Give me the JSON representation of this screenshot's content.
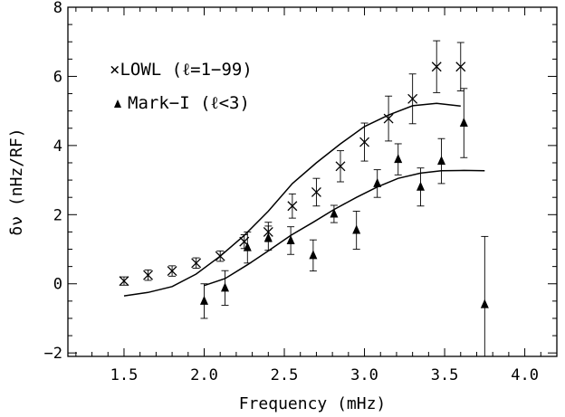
{
  "chart_data": {
    "type": "scatter",
    "title": "",
    "xlabel": "Frequency (mHz)",
    "ylabel": "δν (nHz/RF)",
    "xlim": [
      1.15,
      4.2
    ],
    "ylim": [
      -2.1,
      8
    ],
    "x_ticks": [
      1.5,
      2.0,
      2.5,
      3.0,
      3.5,
      4.0
    ],
    "x_tick_labels": [
      "1.5",
      "2.0",
      "2.5",
      "3.0",
      "3.5",
      "4.0"
    ],
    "y_ticks": [
      -2,
      0,
      2,
      4,
      6,
      8
    ],
    "y_tick_labels": [
      "−2",
      "0",
      "2",
      "4",
      "6",
      "8"
    ],
    "grid": false,
    "legend_position": "top-left",
    "series": [
      {
        "name": "×LOWL (ℓ=1−99)",
        "marker": "x",
        "points": [
          {
            "x": 1.5,
            "y": 0.08,
            "err": 0.12
          },
          {
            "x": 1.65,
            "y": 0.25,
            "err": 0.15
          },
          {
            "x": 1.8,
            "y": 0.37,
            "err": 0.15
          },
          {
            "x": 1.95,
            "y": 0.6,
            "err": 0.15
          },
          {
            "x": 2.1,
            "y": 0.8,
            "err": 0.15
          },
          {
            "x": 2.25,
            "y": 1.22,
            "err": 0.2
          },
          {
            "x": 2.4,
            "y": 1.5,
            "err": 0.28
          },
          {
            "x": 2.55,
            "y": 2.25,
            "err": 0.35
          },
          {
            "x": 2.7,
            "y": 2.65,
            "err": 0.4
          },
          {
            "x": 2.85,
            "y": 3.4,
            "err": 0.45
          },
          {
            "x": 3.0,
            "y": 4.1,
            "err": 0.55
          },
          {
            "x": 3.15,
            "y": 4.78,
            "err": 0.65
          },
          {
            "x": 3.3,
            "y": 5.35,
            "err": 0.72
          },
          {
            "x": 3.45,
            "y": 6.28,
            "err": 0.75
          },
          {
            "x": 3.6,
            "y": 6.28,
            "err": 0.7
          }
        ]
      },
      {
        "name": "Mark−I (ℓ<3)",
        "marker": "triangle",
        "points": [
          {
            "x": 2.0,
            "y": -0.5,
            "err": 0.5
          },
          {
            "x": 2.13,
            "y": -0.12,
            "err": 0.5
          },
          {
            "x": 2.27,
            "y": 1.05,
            "err": 0.45
          },
          {
            "x": 2.4,
            "y": 1.32,
            "err": 0.35
          },
          {
            "x": 2.54,
            "y": 1.25,
            "err": 0.4
          },
          {
            "x": 2.68,
            "y": 0.82,
            "err": 0.45
          },
          {
            "x": 2.81,
            "y": 2.02,
            "err": 0.25
          },
          {
            "x": 2.95,
            "y": 1.55,
            "err": 0.55
          },
          {
            "x": 3.08,
            "y": 2.9,
            "err": 0.4
          },
          {
            "x": 3.21,
            "y": 3.6,
            "err": 0.45
          },
          {
            "x": 3.35,
            "y": 2.8,
            "err": 0.55
          },
          {
            "x": 3.48,
            "y": 3.55,
            "err": 0.65
          },
          {
            "x": 3.62,
            "y": 4.65,
            "err": 1.0
          },
          {
            "x": 3.75,
            "y": -0.6,
            "err": 1.97
          }
        ]
      }
    ],
    "curves": [
      {
        "points": [
          [
            1.5,
            -0.35
          ],
          [
            1.65,
            -0.25
          ],
          [
            1.8,
            -0.08
          ],
          [
            1.95,
            0.28
          ],
          [
            2.1,
            0.8
          ],
          [
            2.25,
            1.4
          ],
          [
            2.4,
            2.1
          ],
          [
            2.55,
            2.9
          ],
          [
            2.7,
            3.5
          ],
          [
            2.85,
            4.05
          ],
          [
            3.0,
            4.55
          ],
          [
            3.15,
            4.88
          ],
          [
            3.3,
            5.15
          ],
          [
            3.45,
            5.22
          ],
          [
            3.6,
            5.14
          ]
        ]
      },
      {
        "points": [
          [
            2.0,
            -0.05
          ],
          [
            2.13,
            0.15
          ],
          [
            2.27,
            0.55
          ],
          [
            2.4,
            0.95
          ],
          [
            2.54,
            1.4
          ],
          [
            2.68,
            1.78
          ],
          [
            2.81,
            2.15
          ],
          [
            2.95,
            2.5
          ],
          [
            3.08,
            2.8
          ],
          [
            3.21,
            3.05
          ],
          [
            3.35,
            3.2
          ],
          [
            3.48,
            3.27
          ],
          [
            3.62,
            3.28
          ],
          [
            3.75,
            3.27
          ]
        ]
      }
    ]
  }
}
